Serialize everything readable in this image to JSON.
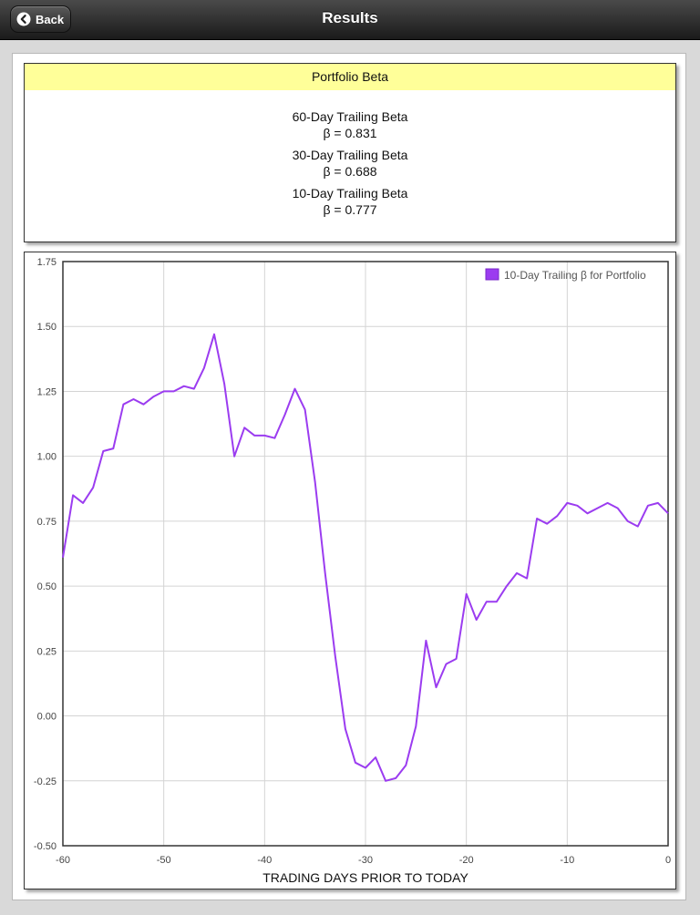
{
  "nav": {
    "title": "Results",
    "back_label": "Back"
  },
  "beta_panel": {
    "header": "Portfolio Beta",
    "items": [
      {
        "label": "60-Day Trailing Beta",
        "value": "β = 0.831"
      },
      {
        "label": "30-Day Trailing Beta",
        "value": "β = 0.688"
      },
      {
        "label": "10-Day Trailing Beta",
        "value": "β = 0.777"
      }
    ]
  },
  "colors": {
    "series": "#9b3cf0",
    "header_bg": "#ffff99",
    "nav_bg": "#2a2a2a"
  },
  "chart_data": {
    "type": "line",
    "xlabel": "TRADING DAYS PRIOR TO TODAY",
    "ylabel": "",
    "xlim": [
      -60,
      0
    ],
    "ylim": [
      -0.5,
      1.75
    ],
    "x_ticks": [
      "-60",
      "-50",
      "-40",
      "-30",
      "-20",
      "-10",
      "0"
    ],
    "y_ticks": [
      "1.75",
      "1.50",
      "1.25",
      "1.00",
      "0.75",
      "0.50",
      "0.25",
      "0.00",
      "-0.25",
      "-0.50"
    ],
    "grid": true,
    "legend_position": "top-right",
    "series": [
      {
        "name": "10-Day Trailing β for Portfolio",
        "x": [
          -60,
          -59,
          -58,
          -57,
          -56,
          -55,
          -54,
          -53,
          -52,
          -51,
          -50,
          -49,
          -48,
          -47,
          -46,
          -45,
          -44,
          -43,
          -42,
          -41,
          -40,
          -39,
          -38,
          -37,
          -36,
          -35,
          -34,
          -33,
          -32,
          -31,
          -30,
          -29,
          -28,
          -27,
          -26,
          -25,
          -24,
          -23,
          -22,
          -21,
          -20,
          -19,
          -18,
          -17,
          -16,
          -15,
          -14,
          -13,
          -12,
          -11,
          -10,
          -9,
          -8,
          -7,
          -6,
          -5,
          -4,
          -3,
          -2,
          -1,
          0
        ],
        "values": [
          0.61,
          0.85,
          0.82,
          0.88,
          1.02,
          1.03,
          1.2,
          1.22,
          1.2,
          1.23,
          1.25,
          1.25,
          1.27,
          1.26,
          1.34,
          1.47,
          1.28,
          1.0,
          1.11,
          1.08,
          1.08,
          1.07,
          1.16,
          1.26,
          1.18,
          0.9,
          0.55,
          0.23,
          -0.05,
          -0.18,
          -0.2,
          -0.16,
          -0.25,
          -0.24,
          -0.19,
          -0.04,
          0.29,
          0.11,
          0.2,
          0.22,
          0.47,
          0.37,
          0.44,
          0.44,
          0.5,
          0.55,
          0.53,
          0.76,
          0.74,
          0.77,
          0.82,
          0.81,
          0.78,
          0.8,
          0.82,
          0.8,
          0.75,
          0.73,
          0.81,
          0.82,
          0.78
        ]
      }
    ]
  }
}
